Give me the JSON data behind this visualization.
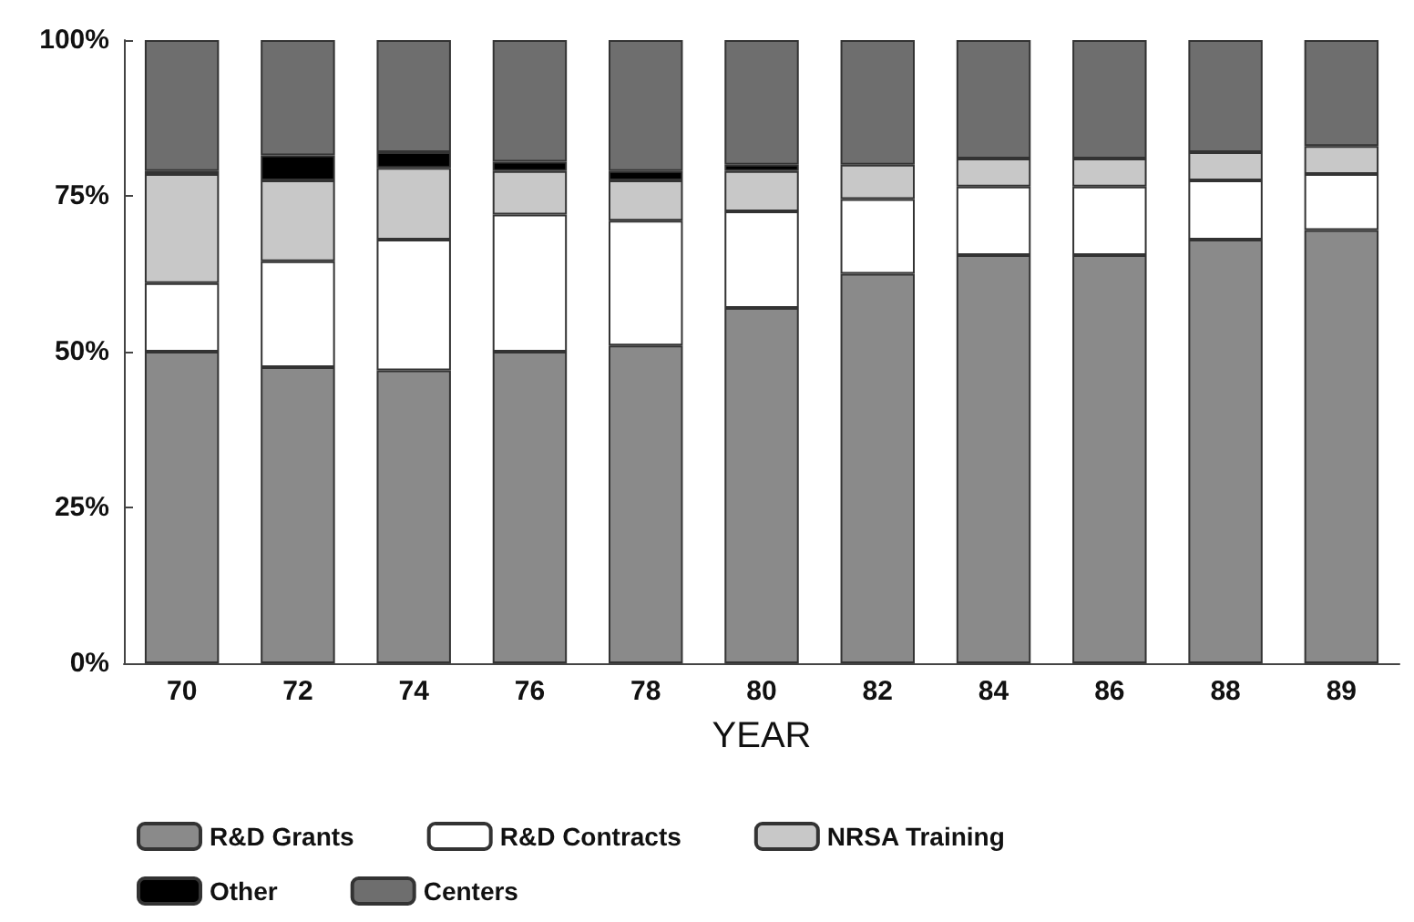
{
  "chart_data": {
    "type": "bar",
    "stacked": true,
    "xlabel": "YEAR",
    "categories": [
      "70",
      "72",
      "74",
      "76",
      "78",
      "80",
      "82",
      "84",
      "86",
      "88",
      "89"
    ],
    "series": [
      {
        "name": "R&D Grants",
        "color": "#8a8a8a",
        "values": [
          50,
          47.5,
          47,
          50,
          51,
          57,
          62.5,
          65.5,
          65.5,
          68,
          69.5
        ]
      },
      {
        "name": "R&D Contracts",
        "color": "#ffffff",
        "values": [
          11,
          17,
          21,
          22,
          20,
          15.5,
          12,
          11,
          11,
          9.5,
          9
        ]
      },
      {
        "name": "NRSA Training",
        "color": "#c8c8c8",
        "values": [
          17.5,
          13,
          11.5,
          7,
          6.5,
          6.5,
          5.5,
          4.5,
          4.5,
          4.5,
          4.5
        ]
      },
      {
        "name": "Other",
        "color": "#000000",
        "values": [
          0.5,
          4,
          2.5,
          1.5,
          1.5,
          1,
          null,
          null,
          null,
          null,
          null
        ]
      },
      {
        "name": "Centers",
        "color": "#6e6e6e",
        "values": [
          21,
          18.5,
          18,
          19.5,
          21,
          20,
          20,
          19,
          19,
          18,
          17
        ]
      }
    ],
    "ylim": [
      0,
      100
    ],
    "yticks": [
      {
        "value": 0,
        "label": "0%"
      },
      {
        "value": 25,
        "label": "25%"
      },
      {
        "value": 50,
        "label": "50%"
      },
      {
        "value": 75,
        "label": "75%"
      },
      {
        "value": 100,
        "label": "100%"
      }
    ],
    "grid": false,
    "legend": "bottom"
  }
}
